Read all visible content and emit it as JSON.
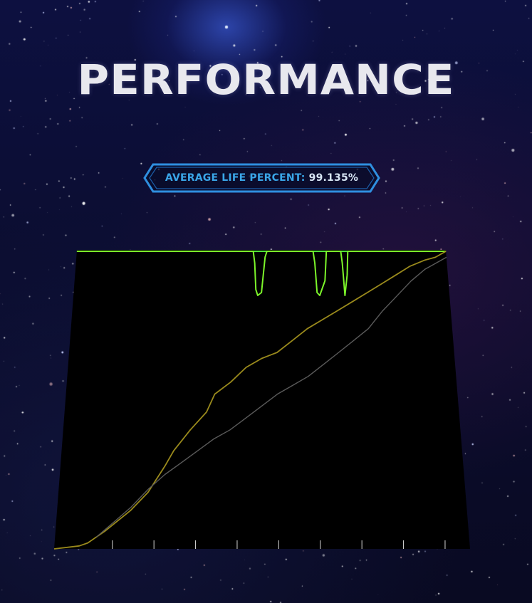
{
  "title": "PERFORMANCE",
  "badge": {
    "label": "AVERAGE LIFE PERCENT:",
    "value": "99.135%"
  },
  "colors": {
    "life_line": "#7cf52a",
    "top_line": "#4ee03a",
    "score_line": "#9a8a1c",
    "combo_line": "#5a5a5a",
    "badge_border": "#2f8fe0",
    "badge_text": "#3aa6e8"
  },
  "chart_data": {
    "type": "line",
    "title": "",
    "xlabel": "",
    "ylabel": "",
    "xlim": [
      0,
      100
    ],
    "ylim": [
      0,
      100
    ],
    "grid": false,
    "x_ticks": [
      0,
      10,
      20,
      30,
      40,
      50,
      60,
      70,
      80,
      90
    ],
    "series": [
      {
        "key": "life",
        "x": [
          0,
          47.8,
          48.2,
          48.5,
          49,
          50,
          51,
          51.5,
          64,
          64.4,
          64.8,
          65.5,
          67,
          67.6,
          71.5,
          71.8,
          72.2,
          73,
          73.4,
          100
        ],
        "y": [
          100,
          100,
          96,
          87,
          85,
          86,
          98,
          100,
          100,
          96,
          86,
          85,
          90,
          100,
          100,
          96,
          85,
          92,
          100,
          100
        ]
      },
      {
        "key": "score",
        "x": [
          0,
          6,
          8,
          12,
          18,
          22,
          26,
          28,
          32,
          36,
          38,
          42,
          46,
          50,
          54,
          58,
          62,
          66,
          70,
          74,
          78,
          82,
          86,
          90,
          94,
          97,
          100
        ],
        "y": [
          0,
          1,
          2,
          6,
          13,
          19,
          28,
          33,
          40,
          46,
          52,
          56,
          61,
          64,
          66,
          70,
          74,
          77,
          80,
          83,
          86,
          89,
          92,
          95,
          97,
          98,
          100
        ]
      },
      {
        "key": "combo",
        "x": [
          10,
          14,
          18,
          22,
          26,
          30,
          34,
          38,
          42,
          46,
          50,
          54,
          58,
          62,
          66,
          70,
          74,
          78,
          82,
          86,
          90,
          94,
          97,
          100
        ],
        "y": [
          4,
          9,
          14,
          20,
          25,
          29,
          33,
          37,
          40,
          44,
          48,
          52,
          55,
          58,
          62,
          66,
          70,
          74,
          80,
          85,
          90,
          94,
          96,
          98
        ]
      }
    ]
  }
}
